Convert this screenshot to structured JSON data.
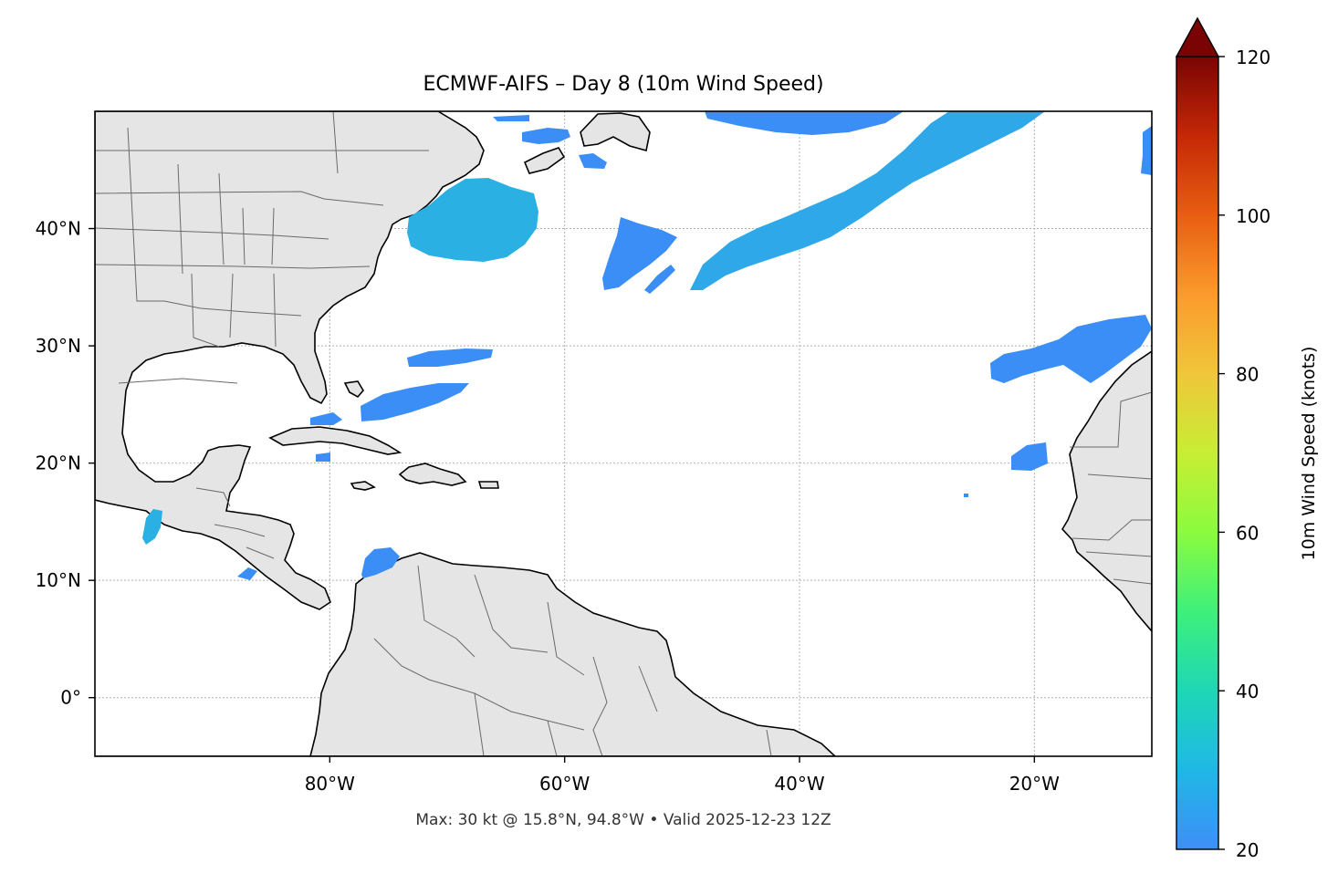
{
  "title": "ECMWF-AIFS – Day 8 (10m Wind Speed)",
  "footer": "Max: 30 kt @ 15.8°N, 94.8°W • Valid 2025-12-23 12Z",
  "map": {
    "lon_range": [
      -100,
      -10
    ],
    "lat_range": [
      -5,
      50
    ],
    "x_ticks": [
      {
        "lon": -80,
        "label": "80°W"
      },
      {
        "lon": -60,
        "label": "60°W"
      },
      {
        "lon": -40,
        "label": "40°W"
      },
      {
        "lon": -20,
        "label": "20°W"
      }
    ],
    "y_ticks": [
      {
        "lat": 40,
        "label": "40°N"
      },
      {
        "lat": 30,
        "label": "30°N"
      },
      {
        "lat": 20,
        "label": "20°N"
      },
      {
        "lat": 10,
        "label": "10°N"
      },
      {
        "lat": 0,
        "label": "0°"
      }
    ],
    "gridlines": true,
    "land_color": "#e5e5e5",
    "wind_color_low": "#3a8ef5",
    "wind_color_mid": "#22c6d8"
  },
  "colorbar": {
    "label": "10m Wind Speed (knots)",
    "range": [
      20,
      120
    ],
    "extend": "max",
    "ticks": [
      {
        "value": 120,
        "label": "120"
      },
      {
        "value": 100,
        "label": "100"
      },
      {
        "value": 80,
        "label": "80"
      },
      {
        "value": 60,
        "label": "60"
      },
      {
        "value": 40,
        "label": "40"
      },
      {
        "value": 20,
        "label": "20"
      }
    ]
  }
}
